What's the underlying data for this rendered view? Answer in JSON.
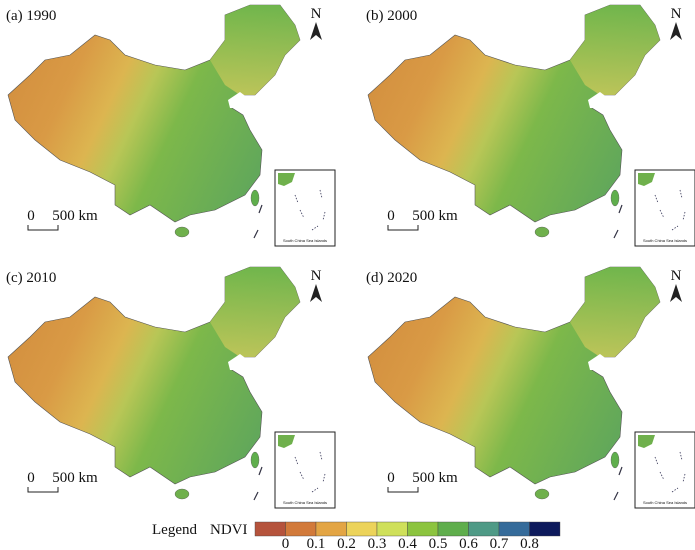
{
  "panels": [
    {
      "label": "(a) 1990"
    },
    {
      "label": "(b) 2000"
    },
    {
      "label": "(c) 2010"
    },
    {
      "label": "(d) 2020"
    }
  ],
  "scale_bar": {
    "zero": "0",
    "length": "500 km"
  },
  "north": "N",
  "inset_label": "South China Sea Islands",
  "legend": {
    "title": "Legend",
    "variable": "NDVI",
    "colors": [
      "#b5533c",
      "#d27a3a",
      "#e3a544",
      "#ecd35a",
      "#cfe05a",
      "#8cc43f",
      "#5fae4c",
      "#4f9a86",
      "#356b9a",
      "#0d1a5c"
    ],
    "ticks": [
      0,
      0.1,
      0.2,
      0.3,
      0.4,
      0.5,
      0.6,
      0.7,
      0.8
    ]
  }
}
